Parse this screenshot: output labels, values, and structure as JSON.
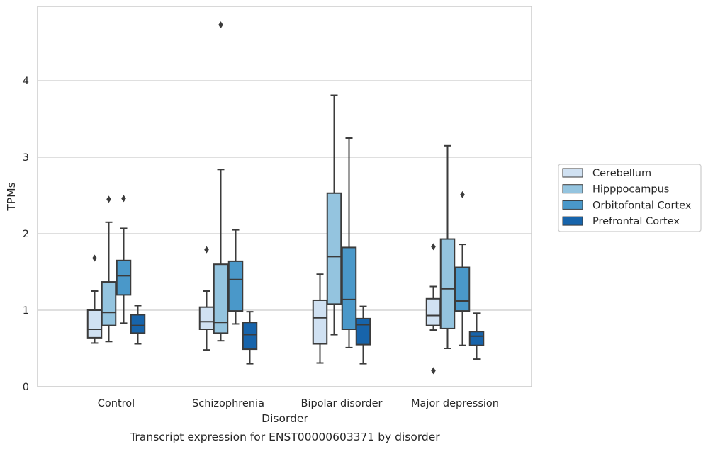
{
  "chart_data": {
    "type": "box",
    "caption": "Transcript expression for ENST00000603371 by disorder",
    "xlabel": "Disorder",
    "ylabel": "TPMs",
    "ylim": [
      0,
      5
    ],
    "yticks": [
      0,
      1,
      2,
      3,
      4
    ],
    "grid": "horizontal",
    "legend_position": "right",
    "categories": [
      "Control",
      "Schizophrenia",
      "Bipolar disorder",
      "Major depression"
    ],
    "series": [
      {
        "name": "Cerebellum",
        "color": "#d0e1f2",
        "boxes": [
          {
            "whisker_low": 0.57,
            "q1": 0.64,
            "median": 0.75,
            "q3": 1.0,
            "whisker_high": 1.25,
            "outliers": [
              1.68
            ]
          },
          {
            "whisker_low": 0.48,
            "q1": 0.75,
            "median": 0.85,
            "q3": 1.04,
            "whisker_high": 1.25,
            "outliers": [
              1.79
            ]
          },
          {
            "whisker_low": 0.31,
            "q1": 0.56,
            "median": 0.9,
            "q3": 1.13,
            "whisker_high": 1.47,
            "outliers": []
          },
          {
            "whisker_low": 0.74,
            "q1": 0.8,
            "median": 0.93,
            "q3": 1.15,
            "whisker_high": 1.31,
            "outliers": [
              1.83,
              0.21
            ]
          }
        ]
      },
      {
        "name": "Hipppocampus",
        "color": "#94c4df",
        "boxes": [
          {
            "whisker_low": 0.59,
            "q1": 0.8,
            "median": 0.97,
            "q3": 1.37,
            "whisker_high": 2.15,
            "outliers": [
              2.45
            ]
          },
          {
            "whisker_low": 0.6,
            "q1": 0.7,
            "median": 0.84,
            "q3": 1.6,
            "whisker_high": 2.84,
            "outliers": [
              4.73
            ]
          },
          {
            "whisker_low": 0.68,
            "q1": 1.08,
            "median": 1.7,
            "q3": 2.53,
            "whisker_high": 3.81,
            "outliers": []
          },
          {
            "whisker_low": 0.5,
            "q1": 0.76,
            "median": 1.28,
            "q3": 1.93,
            "whisker_high": 3.15,
            "outliers": []
          }
        ]
      },
      {
        "name": "Orbitofontal Cortex",
        "color": "#4a98c9",
        "boxes": [
          {
            "whisker_low": 0.83,
            "q1": 1.2,
            "median": 1.45,
            "q3": 1.65,
            "whisker_high": 2.07,
            "outliers": [
              2.46
            ]
          },
          {
            "whisker_low": 0.82,
            "q1": 0.99,
            "median": 1.4,
            "q3": 1.64,
            "whisker_high": 2.05,
            "outliers": []
          },
          {
            "whisker_low": 0.51,
            "q1": 0.75,
            "median": 1.14,
            "q3": 1.82,
            "whisker_high": 3.25,
            "outliers": []
          },
          {
            "whisker_low": 0.54,
            "q1": 0.99,
            "median": 1.12,
            "q3": 1.56,
            "whisker_high": 1.86,
            "outliers": [
              2.51
            ]
          }
        ]
      },
      {
        "name": "Prefrontal Cortex",
        "color": "#1764ab",
        "boxes": [
          {
            "whisker_low": 0.56,
            "q1": 0.7,
            "median": 0.8,
            "q3": 0.94,
            "whisker_high": 1.06,
            "outliers": []
          },
          {
            "whisker_low": 0.3,
            "q1": 0.49,
            "median": 0.68,
            "q3": 0.84,
            "whisker_high": 0.98,
            "outliers": []
          },
          {
            "whisker_low": 0.3,
            "q1": 0.55,
            "median": 0.81,
            "q3": 0.89,
            "whisker_high": 1.05,
            "outliers": []
          },
          {
            "whisker_low": 0.36,
            "q1": 0.54,
            "median": 0.66,
            "q3": 0.72,
            "whisker_high": 0.96,
            "outliers": []
          }
        ]
      }
    ]
  }
}
